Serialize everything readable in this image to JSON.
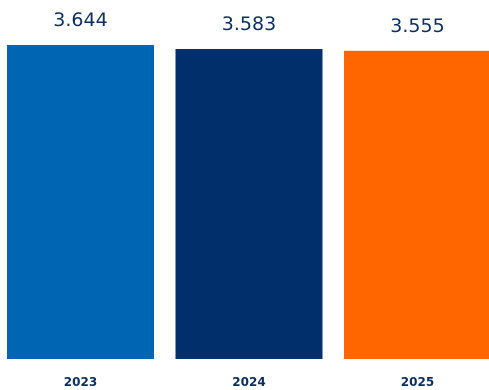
{
  "chart_data": {
    "type": "bar",
    "categories": [
      "2023",
      "2024",
      "2025"
    ],
    "values": [
      3.644,
      3.583,
      3.555
    ],
    "value_labels": [
      "3.644",
      "3.583",
      "3.555"
    ],
    "colors": [
      "#0066b3",
      "#002f6c",
      "#ff6600"
    ],
    "title": "",
    "xlabel": "",
    "ylabel": "",
    "grid": false,
    "legend": "none"
  }
}
